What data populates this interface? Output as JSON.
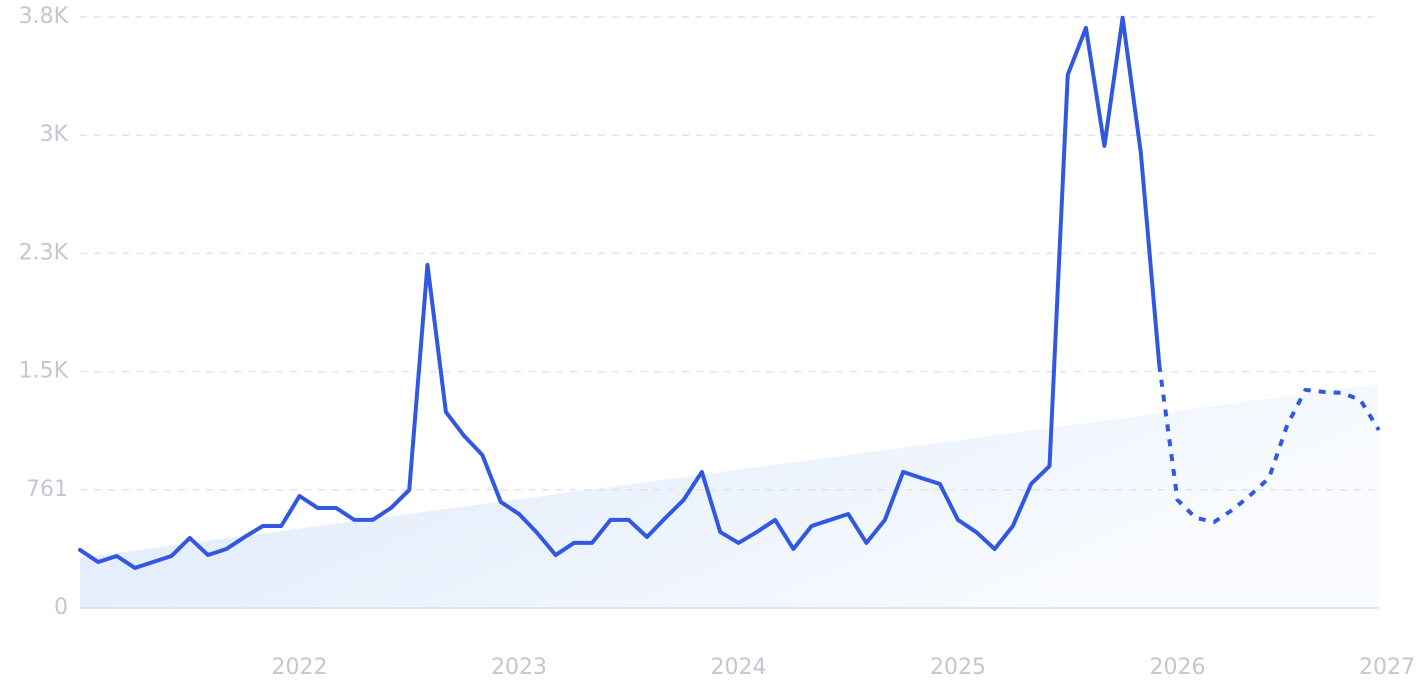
{
  "chart_data": {
    "type": "line",
    "x": [
      2021,
      2021.083,
      2021.167,
      2021.25,
      2021.333,
      2021.417,
      2021.5,
      2021.583,
      2021.667,
      2021.75,
      2021.833,
      2021.917,
      2022,
      2022.083,
      2022.167,
      2022.25,
      2022.333,
      2022.417,
      2022.5,
      2022.583,
      2022.667,
      2022.75,
      2022.833,
      2022.917,
      2023,
      2023.083,
      2023.167,
      2023.25,
      2023.333,
      2023.417,
      2023.5,
      2023.583,
      2023.667,
      2023.75,
      2023.833,
      2023.917,
      2024,
      2024.083,
      2024.167,
      2024.25,
      2024.333,
      2024.417,
      2024.5,
      2024.583,
      2024.667,
      2024.75,
      2024.833,
      2024.917,
      2025,
      2025.083,
      2025.167,
      2025.25,
      2025.333,
      2025.417,
      2025.5,
      2025.583,
      2025.667,
      2025.75,
      2025.833,
      2025.917,
      2026,
      2026.083,
      2026.167,
      2026.25,
      2026.333,
      2026.417,
      2026.5,
      2026.583,
      2026.667,
      2026.75,
      2026.833,
      2026.917
    ],
    "series": [
      {
        "color": "#3158e2",
        "dashed": false,
        "values": [
          374,
          296,
          335,
          258,
          296,
          335,
          451,
          341,
          380,
          457,
          528,
          528,
          721,
          644,
          644,
          567,
          567,
          644,
          760,
          2209,
          1262,
          1108,
          985,
          683,
          605,
          483,
          341,
          419,
          419,
          567,
          567,
          457,
          580,
          696,
          876,
          489,
          419,
          489,
          567,
          380,
          528,
          567,
          605,
          419,
          567,
          876,
          837,
          799,
          567,
          489,
          380,
          528,
          799,
          914,
          3433,
          3735,
          2975,
          3800,
          2930,
          1565,
          null,
          null,
          null,
          null,
          null,
          null,
          null,
          null,
          null,
          null,
          null,
          null
        ]
      },
      {
        "color": "#3158e2",
        "dashed": true,
        "values": [
          null,
          null,
          null,
          null,
          null,
          null,
          null,
          null,
          null,
          null,
          null,
          null,
          null,
          null,
          null,
          null,
          null,
          null,
          null,
          null,
          null,
          null,
          null,
          null,
          null,
          null,
          null,
          null,
          null,
          null,
          null,
          null,
          null,
          null,
          null,
          null,
          null,
          null,
          null,
          null,
          null,
          null,
          null,
          null,
          null,
          null,
          null,
          null,
          null,
          null,
          null,
          null,
          null,
          null,
          null,
          null,
          null,
          null,
          null,
          1565,
          696,
          580,
          554,
          631,
          728,
          837,
          1178,
          1404,
          1391,
          1385,
          1340,
          1146
        ]
      }
    ],
    "trend": {
      "x": [
        2021,
        2026.917
      ],
      "values": [
        322,
        1443
      ],
      "color": "#dbe7fa"
    },
    "xlim": [
      2021,
      2027
    ],
    "xticks": [
      2022,
      2023,
      2024,
      2025,
      2026,
      2027
    ],
    "ylim": [
      0,
      3805
    ],
    "yticks": [
      0,
      761,
      {
        "value": 1522,
        "label": "1.5K"
      },
      {
        "value": 2283,
        "label": "2.3K"
      },
      {
        "value": 3044,
        "label": "3K"
      },
      {
        "value": 3805,
        "label": "3.8K"
      }
    ],
    "grid": true
  }
}
